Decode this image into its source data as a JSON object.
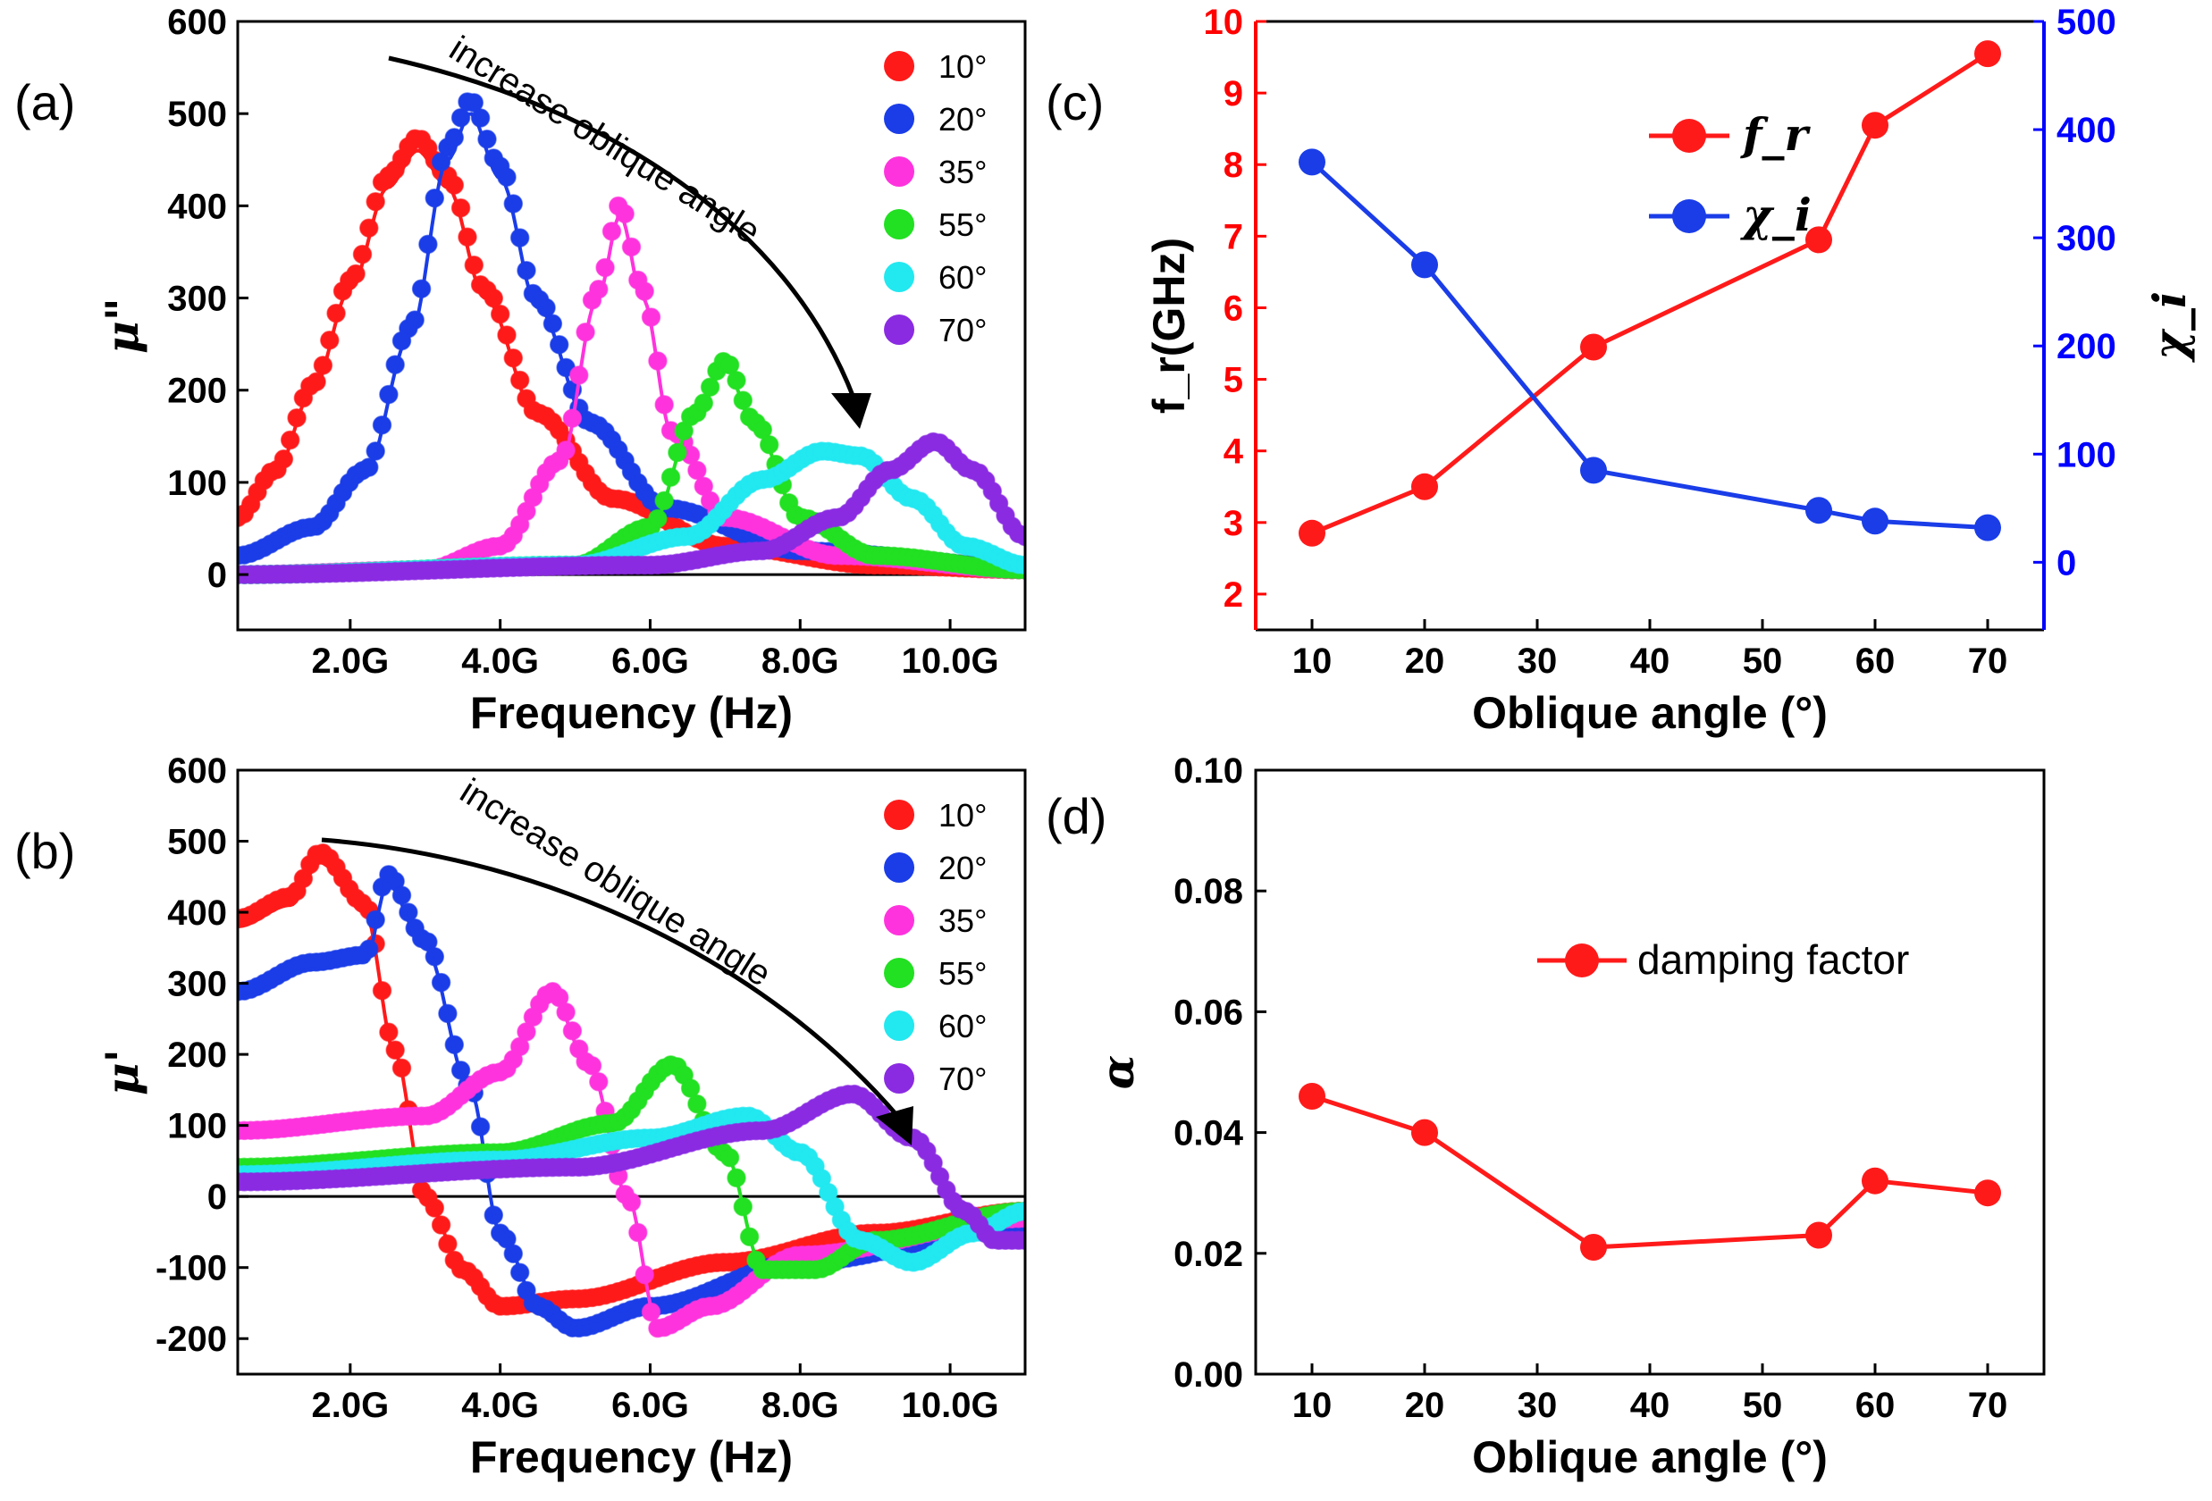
{
  "colors": {
    "red": "#ff1a1a",
    "blue": "#1a3de8",
    "magenta": "#ff33dd",
    "green": "#22e022",
    "cyan": "#22e8f0",
    "purple": "#8a2be2",
    "fr_axis": "#ff0000",
    "chi_axis": "#0000ff",
    "axis": "#000000"
  },
  "chart_data": [
    {
      "panel": "(a)",
      "type": "line",
      "xlabel": "Frequency (Hz)",
      "ylabel": "μ\"",
      "xlim": [
        0.5,
        11
      ],
      "ylim": [
        -60,
        600
      ],
      "x_ticks": [
        2,
        4,
        6,
        8,
        10
      ],
      "x_tick_labels": [
        "2.0G",
        "4.0G",
        "6.0G",
        "8.0G",
        "10.0G"
      ],
      "y_ticks": [
        0,
        100,
        200,
        300,
        400,
        500,
        600
      ],
      "y_tick_labels": [
        "0",
        "100",
        "200",
        "300",
        "400",
        "500",
        "600"
      ],
      "annotation": "increase oblique angle",
      "legend_position": "top-right",
      "series": [
        {
          "name": "10°",
          "color": "red",
          "fit": [
            [
              0.5,
              60
            ],
            [
              1.0,
              110
            ],
            [
              1.5,
              200
            ],
            [
              2.0,
              310
            ],
            [
              2.5,
              420
            ],
            [
              2.9,
              460
            ],
            [
              3.3,
              420
            ],
            [
              3.8,
              300
            ],
            [
              4.5,
              170
            ],
            [
              5.5,
              80
            ],
            [
              7.0,
              30
            ],
            [
              9.0,
              10
            ],
            [
              11,
              5
            ]
          ]
        },
        {
          "name": "20°",
          "color": "blue",
          "fit": [
            [
              0.5,
              20
            ],
            [
              1.5,
              50
            ],
            [
              2.2,
              110
            ],
            [
              2.8,
              260
            ],
            [
              3.3,
              450
            ],
            [
              3.6,
              500
            ],
            [
              4.0,
              430
            ],
            [
              4.5,
              290
            ],
            [
              5.2,
              160
            ],
            [
              6.2,
              70
            ],
            [
              8.0,
              25
            ],
            [
              11,
              8
            ]
          ]
        },
        {
          "name": "35°",
          "color": "magenta",
          "fit": [
            [
              0.5,
              0
            ],
            [
              3.0,
              5
            ],
            [
              4.0,
              30
            ],
            [
              4.8,
              120
            ],
            [
              5.3,
              300
            ],
            [
              5.6,
              390
            ],
            [
              5.9,
              300
            ],
            [
              6.3,
              150
            ],
            [
              7.0,
              60
            ],
            [
              8.5,
              20
            ],
            [
              11,
              5
            ]
          ]
        },
        {
          "name": "55°",
          "color": "green",
          "fit": [
            [
              0.5,
              0
            ],
            [
              5.0,
              10
            ],
            [
              6.0,
              50
            ],
            [
              6.6,
              170
            ],
            [
              7.0,
              225
            ],
            [
              7.4,
              160
            ],
            [
              8.0,
              60
            ],
            [
              9.0,
              20
            ],
            [
              11,
              5
            ]
          ]
        },
        {
          "name": "60°",
          "color": "cyan",
          "fit": [
            [
              0.5,
              0
            ],
            [
              5.0,
              10
            ],
            [
              6.5,
              40
            ],
            [
              7.5,
              100
            ],
            [
              8.3,
              130
            ],
            [
              8.8,
              125
            ],
            [
              9.5,
              80
            ],
            [
              10.2,
              30
            ],
            [
              11,
              10
            ]
          ]
        },
        {
          "name": "70°",
          "color": "purple",
          "fit": [
            [
              0.5,
              0
            ],
            [
              6.0,
              10
            ],
            [
              7.5,
              25
            ],
            [
              8.5,
              60
            ],
            [
              9.2,
              110
            ],
            [
              9.8,
              140
            ],
            [
              10.3,
              110
            ],
            [
              11,
              40
            ]
          ]
        }
      ]
    },
    {
      "panel": "(b)",
      "type": "line",
      "xlabel": "Frequency (Hz)",
      "ylabel": "μ'",
      "xlim": [
        0.5,
        11
      ],
      "ylim": [
        -250,
        600
      ],
      "x_ticks": [
        2,
        4,
        6,
        8,
        10
      ],
      "x_tick_labels": [
        "2.0G",
        "4.0G",
        "6.0G",
        "8.0G",
        "10.0G"
      ],
      "y_ticks": [
        -200,
        -100,
        0,
        100,
        200,
        300,
        400,
        500,
        600
      ],
      "y_tick_labels": [
        "-200",
        "-100",
        "0",
        "100",
        "200",
        "300",
        "400",
        "500",
        "600"
      ],
      "annotation": "increase oblique angle",
      "legend_position": "top-right",
      "series": [
        {
          "name": "10°",
          "color": "red",
          "fit": [
            [
              0.5,
              380
            ],
            [
              1.2,
              410
            ],
            [
              1.6,
              470
            ],
            [
              2.2,
              400
            ],
            [
              2.6,
              200
            ],
            [
              3.0,
              0
            ],
            [
              3.5,
              -100
            ],
            [
              4.0,
              -150
            ],
            [
              5.0,
              -140
            ],
            [
              7.0,
              -90
            ],
            [
              9.0,
              -50
            ],
            [
              11,
              -20
            ]
          ]
        },
        {
          "name": "20°",
          "color": "blue",
          "fit": [
            [
              0.5,
              280
            ],
            [
              1.5,
              320
            ],
            [
              2.2,
              330
            ],
            [
              2.5,
              440
            ],
            [
              3.0,
              350
            ],
            [
              3.6,
              150
            ],
            [
              4.0,
              -50
            ],
            [
              4.5,
              -150
            ],
            [
              5.0,
              -180
            ],
            [
              6.0,
              -150
            ],
            [
              8.0,
              -90
            ],
            [
              11,
              -40
            ]
          ]
        },
        {
          "name": "35°",
          "color": "magenta",
          "fit": [
            [
              0.5,
              90
            ],
            [
              3.0,
              110
            ],
            [
              4.0,
              170
            ],
            [
              4.7,
              280
            ],
            [
              5.2,
              180
            ],
            [
              5.7,
              0
            ],
            [
              6.1,
              -180
            ],
            [
              6.8,
              -150
            ],
            [
              8.0,
              -80
            ],
            [
              11,
              -30
            ]
          ]
        },
        {
          "name": "55°",
          "color": "green",
          "fit": [
            [
              0.5,
              40
            ],
            [
              4.0,
              60
            ],
            [
              5.5,
              100
            ],
            [
              6.3,
              180
            ],
            [
              7.0,
              60
            ],
            [
              7.5,
              -100
            ],
            [
              8.2,
              -100
            ],
            [
              9.0,
              -60
            ],
            [
              11,
              -20
            ]
          ]
        },
        {
          "name": "60°",
          "color": "cyan",
          "fit": [
            [
              0.5,
              30
            ],
            [
              4.0,
              50
            ],
            [
              6.0,
              80
            ],
            [
              7.3,
              110
            ],
            [
              8.0,
              60
            ],
            [
              8.8,
              -60
            ],
            [
              9.5,
              -90
            ],
            [
              10.3,
              -50
            ],
            [
              11,
              -20
            ]
          ]
        },
        {
          "name": "70°",
          "color": "purple",
          "fit": [
            [
              0.5,
              20
            ],
            [
              5.0,
              40
            ],
            [
              7.5,
              90
            ],
            [
              8.7,
              140
            ],
            [
              9.5,
              80
            ],
            [
              10.2,
              -20
            ],
            [
              10.6,
              -60
            ],
            [
              11,
              -60
            ]
          ]
        }
      ]
    },
    {
      "panel": "(c)",
      "type": "line",
      "xlabel": "Oblique angle (°)",
      "ylabel_left": "f_r(GHz)",
      "ylabel_right": "χ_i",
      "xlim": [
        5,
        75
      ],
      "ylim_left": [
        1.5,
        10
      ],
      "ylim_right": [
        -62.5,
        500
      ],
      "x_ticks": [
        10,
        20,
        30,
        40,
        50,
        60,
        70
      ],
      "y_ticks_left": [
        2,
        3,
        4,
        5,
        6,
        7,
        8,
        9,
        10
      ],
      "y_ticks_right": [
        0,
        100,
        200,
        300,
        400,
        500
      ],
      "legend_position": "top-center",
      "series": [
        {
          "name": "f_r",
          "color": "red",
          "axis": "left",
          "x": [
            10,
            20,
            35,
            55,
            60,
            70
          ],
          "values": [
            2.85,
            3.5,
            5.45,
            6.95,
            8.55,
            9.55
          ]
        },
        {
          "name": "χ_i",
          "color": "blue",
          "axis": "right",
          "x": [
            10,
            20,
            35,
            55,
            60,
            70
          ],
          "values": [
            370,
            275,
            85,
            48,
            38,
            32
          ]
        }
      ]
    },
    {
      "panel": "(d)",
      "type": "line",
      "xlabel": "Oblique angle (°)",
      "ylabel": "α",
      "xlim": [
        5,
        75
      ],
      "ylim": [
        0,
        0.1
      ],
      "x_ticks": [
        10,
        20,
        30,
        40,
        50,
        60,
        70
      ],
      "y_ticks": [
        0,
        0.02,
        0.04,
        0.06,
        0.08,
        0.1
      ],
      "y_tick_labels": [
        "0.00",
        "0.02",
        "0.04",
        "0.06",
        "0.08",
        "0.10"
      ],
      "legend_position": "center-right",
      "series": [
        {
          "name": "damping factor",
          "color": "red",
          "x": [
            10,
            20,
            35,
            55,
            60,
            70
          ],
          "values": [
            0.046,
            0.04,
            0.021,
            0.023,
            0.032,
            0.03
          ]
        }
      ]
    }
  ]
}
